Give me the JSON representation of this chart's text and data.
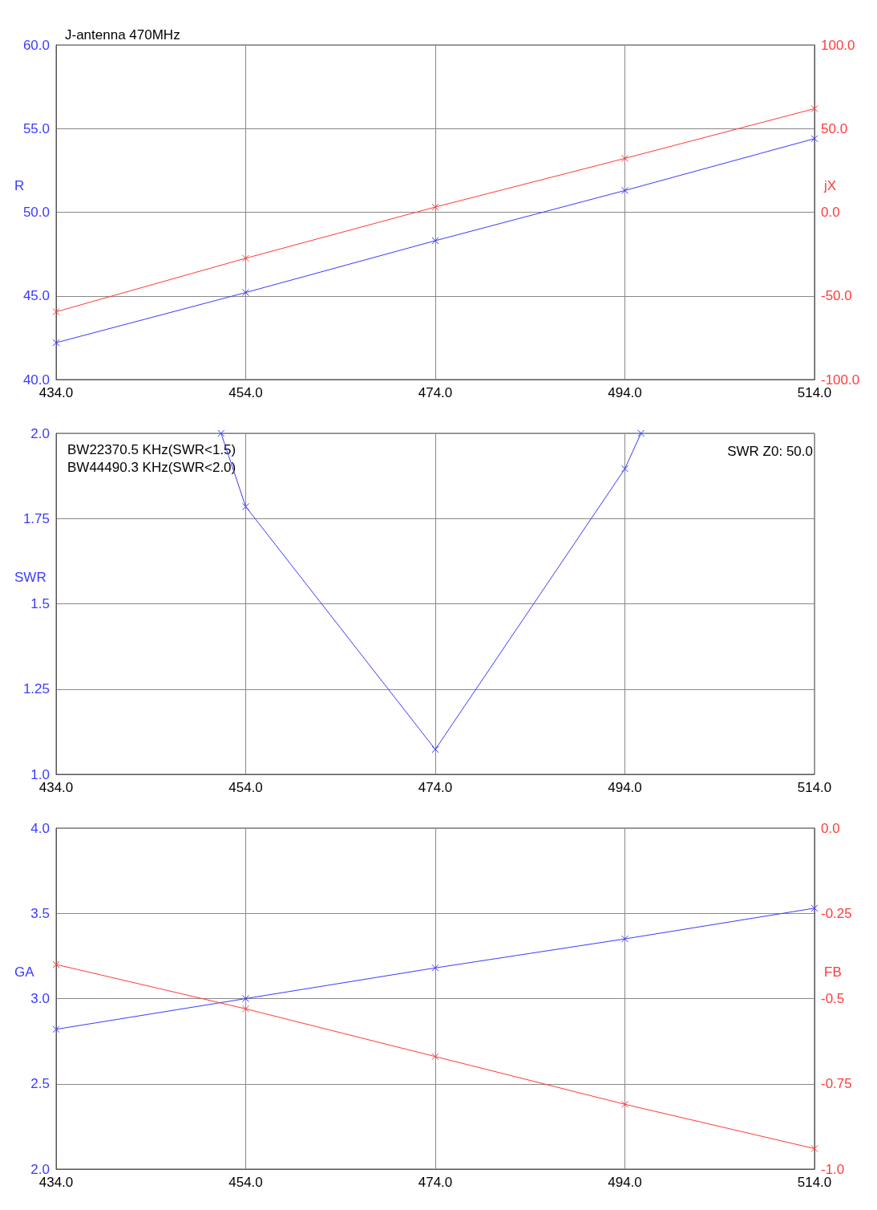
{
  "chart_data": [
    {
      "type": "line",
      "title": "J-antenna 470MHz",
      "ylabel": "R",
      "y2label": "jX",
      "x": [
        434,
        454,
        474,
        494,
        514
      ],
      "xlim": [
        434,
        514
      ],
      "xticks": [
        {
          "value": 434,
          "label": "434.0"
        },
        {
          "value": 454,
          "label": "454.0"
        },
        {
          "value": 474,
          "label": "474.0"
        },
        {
          "value": 494,
          "label": "494.0"
        },
        {
          "value": 514,
          "label": "514.0"
        }
      ],
      "ylim": [
        40,
        60
      ],
      "yticks": [
        {
          "value": 40,
          "label": "40.0"
        },
        {
          "value": 45,
          "label": "45.0"
        },
        {
          "value": 50,
          "label": "50.0"
        },
        {
          "value": 55,
          "label": "55.0"
        },
        {
          "value": 60,
          "label": "60.0"
        }
      ],
      "y2lim": [
        -100,
        100
      ],
      "y2ticks": [
        {
          "value": -100,
          "label": "-100.0"
        },
        {
          "value": -50,
          "label": "-50.0"
        },
        {
          "value": 0,
          "label": "0.0"
        },
        {
          "value": 50,
          "label": "50.0"
        },
        {
          "value": 100,
          "label": "100.0"
        }
      ],
      "grid": true,
      "marker": "cross",
      "line_style": "solid",
      "series": [
        {
          "color": "#3a3aff",
          "values": [
            42.2,
            45.2,
            48.3,
            51.3,
            54.4
          ]
        },
        {
          "color": "#ff3a3a",
          "axis": "y2",
          "values": [
            -59.5,
            -27.5,
            3.1,
            32.2,
            61.9
          ]
        }
      ]
    },
    {
      "type": "line",
      "ylabel": "SWR",
      "xlim": [
        434,
        514
      ],
      "xticks": [
        {
          "value": 434,
          "label": "434.0"
        },
        {
          "value": 454,
          "label": "454.0"
        },
        {
          "value": 474,
          "label": "474.0"
        },
        {
          "value": 494,
          "label": "494.0"
        },
        {
          "value": 514,
          "label": "514.0"
        }
      ],
      "ylim": [
        1,
        2
      ],
      "yticks": [
        {
          "value": 1,
          "label": "1.0"
        },
        1.25,
        1.5,
        1.75,
        {
          "value": 2,
          "label": "2.0"
        }
      ],
      "grid": true,
      "marker": "cross",
      "line_style": "solid",
      "annotations": [
        "BW22370.5 KHz(SWR<1.5)",
        "BW44490.3 KHz(SWR<2.0)",
        "SWR Z0: 50.0"
      ],
      "series": [
        {
          "color": "#3a3aff",
          "x": [
            451.4,
            454,
            474,
            494,
            495.7
          ],
          "values": [
            2.0,
            1.785,
            1.073,
            1.896,
            2.0
          ]
        }
      ]
    },
    {
      "type": "line",
      "ylabel": "GA",
      "y2label": "FB",
      "x": [
        434,
        454,
        474,
        494,
        514
      ],
      "xlim": [
        434,
        514
      ],
      "xticks": [
        {
          "value": 434,
          "label": "434.0"
        },
        {
          "value": 454,
          "label": "454.0"
        },
        {
          "value": 474,
          "label": "474.0"
        },
        {
          "value": 494,
          "label": "494.0"
        },
        {
          "value": 514,
          "label": "514.0"
        }
      ],
      "ylim": [
        2,
        4
      ],
      "yticks": [
        {
          "value": 2,
          "label": "2.0"
        },
        2.5,
        {
          "value": 3,
          "label": "3.0"
        },
        3.5,
        {
          "value": 4,
          "label": "4.0"
        }
      ],
      "y2lim": [
        -1,
        0
      ],
      "y2ticks": [
        {
          "value": -1,
          "label": "-1.0"
        },
        -0.75,
        -0.5,
        -0.25,
        {
          "value": 0,
          "label": "0.0"
        }
      ],
      "grid": true,
      "marker": "cross",
      "line_style": "solid",
      "series": [
        {
          "color": "#3a3aff",
          "values": [
            2.82,
            3.0,
            3.18,
            3.35,
            3.53
          ]
        },
        {
          "color": "#ff3a3a",
          "axis": "y2",
          "values": [
            -0.4,
            -0.53,
            -0.67,
            -0.81,
            -0.94
          ]
        }
      ]
    }
  ]
}
